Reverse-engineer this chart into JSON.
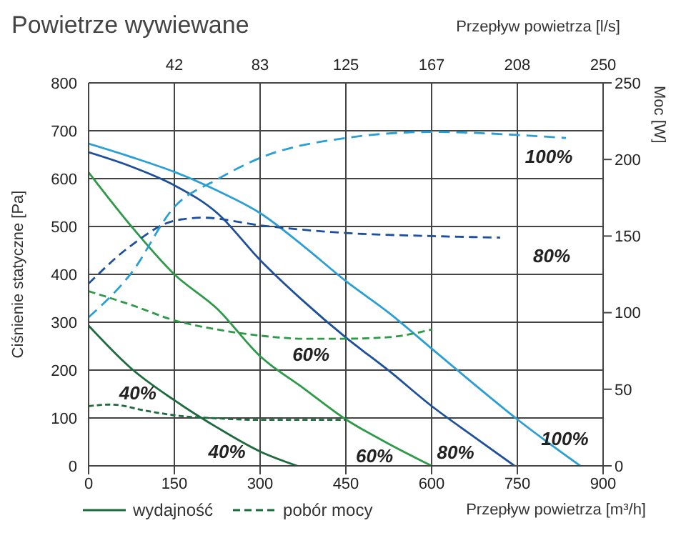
{
  "chart_data": {
    "type": "line",
    "title": "Powietrze wywiewane",
    "xlabel": "Przepływ powietrza [m³/h]",
    "x2label": "Przepływ powietrza [l/s]",
    "ylabel": "Ciśnienie statyczne [Pa]",
    "y2label": "Moc [W]",
    "xlim": [
      0,
      900
    ],
    "xticks": [
      0,
      150,
      300,
      450,
      600,
      750,
      900
    ],
    "x2lim": [
      0,
      250
    ],
    "x2ticks": [
      {
        "value": 41.67,
        "label": "42"
      },
      {
        "value": 83.33,
        "label": "83"
      },
      125,
      {
        "value": 166.67,
        "label": "167"
      },
      {
        "value": 208.33,
        "label": "208"
      },
      250
    ],
    "ylim": [
      0,
      800
    ],
    "yticks": [
      0,
      100,
      200,
      300,
      400,
      500,
      600,
      700,
      800
    ],
    "y2lim": [
      0,
      250
    ],
    "y2ticks": [
      0,
      50,
      100,
      150,
      200,
      250
    ],
    "grid": true,
    "legend": "bottom left",
    "marker": "none",
    "series": [
      {
        "name": "wydajność",
        "color": "#1c6b3c",
        "line_style": "solid",
        "x": [
          0,
          75,
          150,
          225,
          300,
          365
        ],
        "values": [
          293,
          203,
          137,
          80,
          30,
          0
        ]
      },
      {
        "color": "#2e9a48",
        "line_style": "solid",
        "x": [
          0,
          75,
          150,
          225,
          300,
          375,
          450,
          525,
          600
        ],
        "values": [
          613,
          500,
          400,
          328,
          229,
          163,
          97,
          46,
          0
        ]
      },
      {
        "color": "#1e4f9c",
        "line_style": "solid",
        "x": [
          0,
          75,
          150,
          225,
          300,
          375,
          450,
          525,
          600,
          675,
          745
        ],
        "values": [
          655,
          625,
          586,
          528,
          430,
          345,
          268,
          199,
          125,
          60,
          0
        ]
      },
      {
        "color": "#2a9fd6",
        "line_style": "solid",
        "x": [
          0,
          75,
          150,
          225,
          300,
          375,
          450,
          525,
          600,
          675,
          750,
          860
        ],
        "values": [
          673,
          645,
          614,
          575,
          528,
          460,
          386,
          320,
          245,
          170,
          97,
          0
        ]
      },
      {
        "name": "pobór mocy",
        "color": "#1c6b3c",
        "line_style": "dashed",
        "axis": "y2",
        "x": [
          0,
          40,
          100,
          150,
          225,
          300,
          450
        ],
        "values": [
          39,
          40,
          36,
          33,
          31,
          30,
          30
        ]
      },
      {
        "color": "#2e9a48",
        "line_style": "dashed",
        "axis": "y2",
        "x": [
          0,
          75,
          150,
          225,
          300,
          375,
          450,
          525,
          600
        ],
        "values": [
          114,
          105,
          95,
          89,
          85,
          83,
          83,
          84,
          89
        ]
      },
      {
        "color": "#1e4f9c",
        "line_style": "dashed",
        "axis": "y2",
        "x": [
          0,
          75,
          150,
          200,
          300,
          450,
          600,
          720
        ],
        "values": [
          119,
          144,
          160,
          162,
          157,
          152,
          150,
          149
        ]
      },
      {
        "color": "#2a9fd6",
        "line_style": "dashed",
        "axis": "y2",
        "x": [
          0,
          75,
          150,
          225,
          300,
          450,
          600,
          750,
          835
        ],
        "values": [
          97,
          126,
          169,
          187,
          201,
          214,
          218,
          216,
          214
        ]
      }
    ],
    "annotations": [
      {
        "text": "40%",
        "x": 86,
        "y": 126
      },
      {
        "text": "40%",
        "x": 242,
        "y": 69
      },
      {
        "text": "60%",
        "x": 389,
        "y": 266
      },
      {
        "text": "60%",
        "x": 500,
        "y": 63
      },
      {
        "text": "80%",
        "x": 720,
        "y": 477
      },
      {
        "text": "80%",
        "x": 642,
        "y": 88
      },
      {
        "text": "100%",
        "x": 805,
        "y": 688
      },
      {
        "text": "100%",
        "x": 843,
        "y": 15
      }
    ]
  }
}
